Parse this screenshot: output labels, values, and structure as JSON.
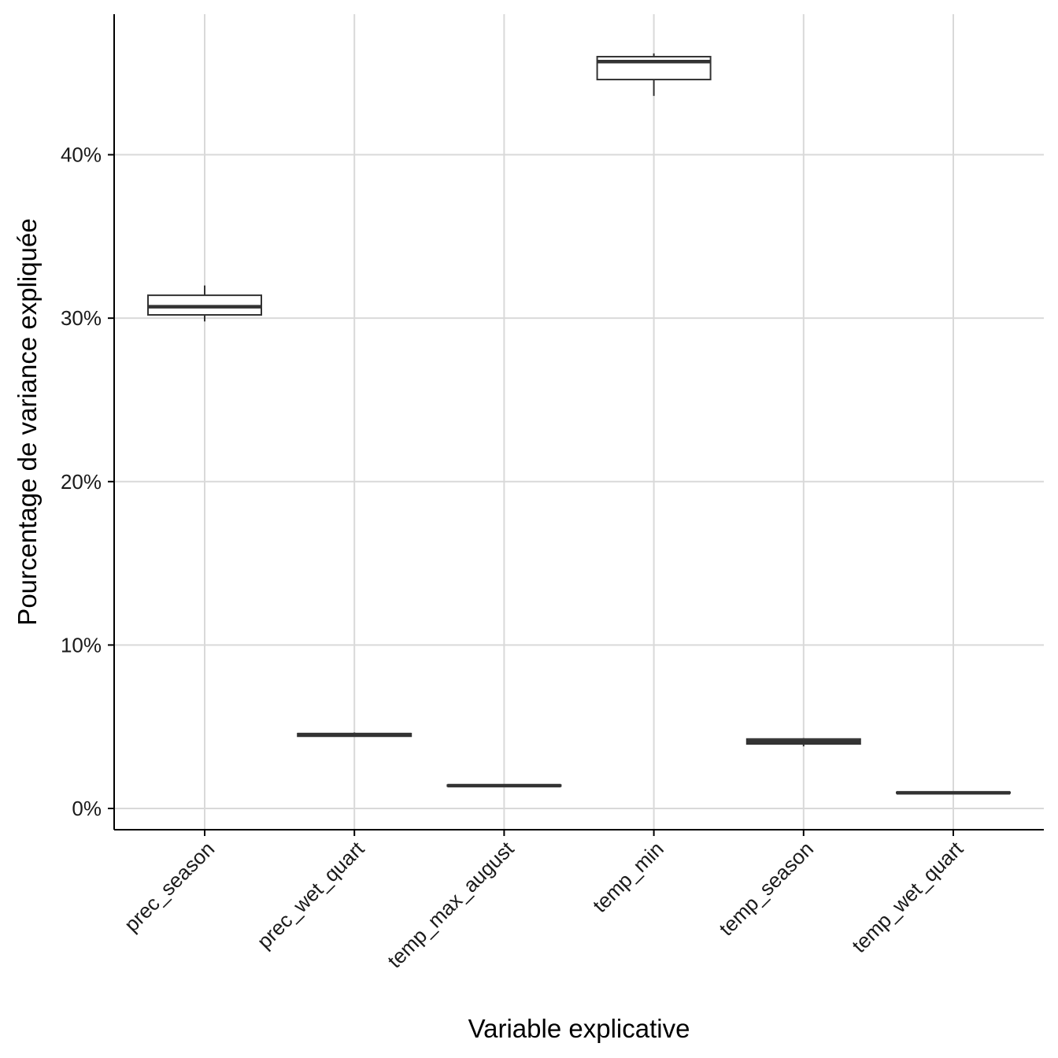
{
  "chart_data": {
    "type": "box",
    "title": "",
    "xlabel": "Variable explicative",
    "ylabel": "Pourcentage de variance expliquée",
    "y_format": "percent",
    "ylim": [
      -0.013,
      0.486
    ],
    "yticks": [
      0,
      0.1,
      0.2,
      0.3,
      0.4
    ],
    "ytick_labels": [
      "0%",
      "10%",
      "20%",
      "30%",
      "40%"
    ],
    "grid": true,
    "legend": "none",
    "categories": [
      "prec_season",
      "prec_wet_quart",
      "temp_max_august",
      "temp_min",
      "temp_season",
      "temp_wet_quart"
    ],
    "boxes": [
      {
        "category": "prec_season",
        "min": 0.298,
        "q1": 0.302,
        "median": 0.307,
        "q3": 0.314,
        "max": 0.32
      },
      {
        "category": "prec_wet_quart",
        "min": 0.044,
        "q1": 0.0442,
        "median": 0.0452,
        "q3": 0.0458,
        "max": 0.0465
      },
      {
        "category": "temp_max_august",
        "min": 0.0136,
        "q1": 0.0137,
        "median": 0.014,
        "q3": 0.0143,
        "max": 0.0145
      },
      {
        "category": "temp_min",
        "min": 0.436,
        "q1": 0.446,
        "median": 0.457,
        "q3": 0.46,
        "max": 0.462
      },
      {
        "category": "temp_season",
        "min": 0.038,
        "q1": 0.0395,
        "median": 0.041,
        "q3": 0.0425,
        "max": 0.043
      },
      {
        "category": "temp_wet_quart",
        "min": 0.0093,
        "q1": 0.0094,
        "median": 0.0096,
        "q3": 0.0099,
        "max": 0.01
      }
    ],
    "colors": {
      "box_stroke": "#333333",
      "box_fill": "#ffffff",
      "grid": "#d9d9d9",
      "axis": "#000000"
    }
  }
}
